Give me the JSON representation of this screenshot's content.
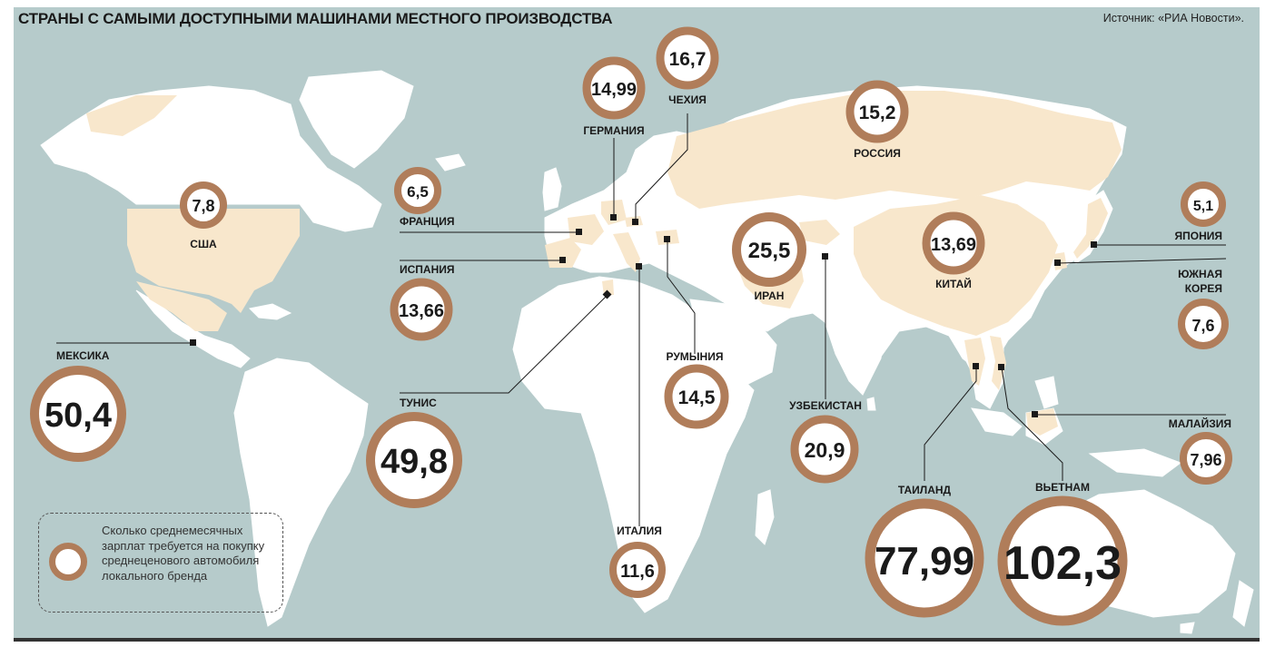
{
  "title": "СТРАНЫ С САМЫМИ ДОСТУПНЫМИ МАШИНАМИ МЕСТНОГО ПРОИЗВОДСТВА",
  "source": "Источник: «РИА Новости».",
  "legend_text": "Сколько среднемесячных зарплат требуется на покупку среднеценового автомобиля локального бренда",
  "colors": {
    "sea": "#b6cbcb",
    "land": "#ffffff",
    "highlight": "#f8e7cc",
    "ring": "#b07d5a",
    "text": "#1a1a1a"
  },
  "countries": {
    "czechia": {
      "name": "ЧЕХИЯ",
      "value": "16,7"
    },
    "germany": {
      "name": "ГЕРМАНИЯ",
      "value": "14,99"
    },
    "russia": {
      "name": "РОССИЯ",
      "value": "15,2"
    },
    "usa": {
      "name": "США",
      "value": "7,8"
    },
    "france": {
      "name": "ФРАНЦИЯ",
      "value": "6,5"
    },
    "spain": {
      "name": "ИСПАНИЯ",
      "value": "13,66"
    },
    "iran": {
      "name": "ИРАН",
      "value": "25,5"
    },
    "china": {
      "name": "КИТАЙ",
      "value": "13,69"
    },
    "japan": {
      "name": "ЯПОНИЯ",
      "value": "5,1"
    },
    "south_korea": {
      "name": "ЮЖНАЯ КОРЕЯ",
      "name_line1": "ЮЖНАЯ",
      "name_line2": "КОРЕЯ",
      "value": "7,6"
    },
    "mexico": {
      "name": "МЕКСИКА",
      "value": "50,4"
    },
    "tunisia": {
      "name": "ТУНИС",
      "value": "49,8"
    },
    "romania": {
      "name": "РУМЫНИЯ",
      "value": "14,5"
    },
    "uzbekistan": {
      "name": "УЗБЕКИСТАН",
      "value": "20,9"
    },
    "malaysia": {
      "name": "МАЛАЙЗИЯ",
      "value": "7,96"
    },
    "italy": {
      "name": "ИТАЛИЯ",
      "value": "11,6"
    },
    "thailand": {
      "name": "ТАИЛАНД",
      "value": "77,99"
    },
    "vietnam": {
      "name": "ВЬЕТНАМ",
      "value": "102,3"
    }
  }
}
